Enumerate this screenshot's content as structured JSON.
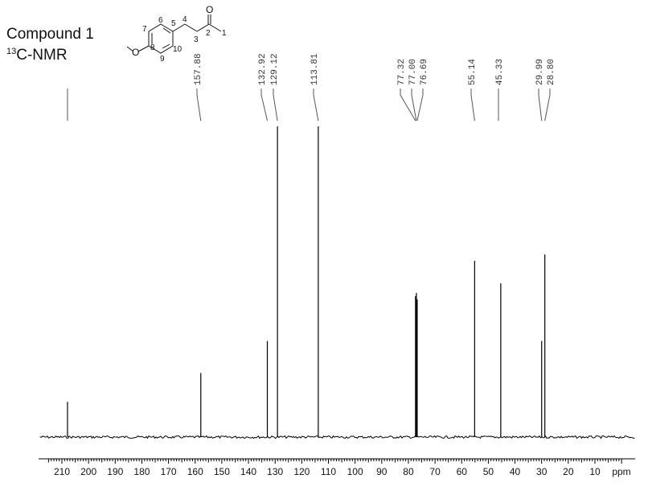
{
  "header": {
    "compound_label": "Compound 1",
    "nmr_mass": "13",
    "nmr_type": "C-NMR"
  },
  "structure": {
    "atom_numbers": [
      "1",
      "2",
      "3",
      "4",
      "5",
      "6",
      "7",
      "8",
      "9",
      "10"
    ],
    "carbonyl_atom": "O",
    "methoxy_atom": "O"
  },
  "chart_data": {
    "type": "line",
    "title": "",
    "xlabel": "ppm",
    "ylabel": "",
    "xlim": [
      215,
      0
    ],
    "x_reversed": true,
    "x_ticks": [
      210,
      200,
      190,
      180,
      170,
      160,
      150,
      140,
      130,
      120,
      110,
      100,
      90,
      80,
      70,
      60,
      50,
      40,
      30,
      20,
      10
    ],
    "grid": false,
    "peaks": [
      {
        "ppm": 207.9,
        "height": 0.11
      },
      {
        "ppm": 157.88,
        "height": 0.2
      },
      {
        "ppm": 132.92,
        "height": 0.3
      },
      {
        "ppm": 129.12,
        "height": 0.97
      },
      {
        "ppm": 113.81,
        "height": 0.97
      },
      {
        "ppm": 77.32,
        "height": 0.44
      },
      {
        "ppm": 77.0,
        "height": 0.45
      },
      {
        "ppm": 76.69,
        "height": 0.43
      },
      {
        "ppm": 55.14,
        "height": 0.55
      },
      {
        "ppm": 45.33,
        "height": 0.48
      },
      {
        "ppm": 29.99,
        "height": 0.3
      },
      {
        "ppm": 28.8,
        "height": 0.57
      }
    ],
    "peak_labels": [
      {
        "text": "157.88",
        "ppm": 157.88
      },
      {
        "text": "132.92",
        "ppm": 132.92
      },
      {
        "text": "129.12",
        "ppm": 129.12
      },
      {
        "text": "113.81",
        "ppm": 113.81
      },
      {
        "text": "77.32",
        "ppm": 77.32
      },
      {
        "text": "77.00",
        "ppm": 77.0
      },
      {
        "text": "76.69",
        "ppm": 76.69
      },
      {
        "text": "55.14",
        "ppm": 55.14
      },
      {
        "text": "45.33",
        "ppm": 45.33
      },
      {
        "text": "29.99",
        "ppm": 29.99
      },
      {
        "text": "28.80",
        "ppm": 28.8
      }
    ],
    "unlabeled_markers": [
      207.9
    ],
    "line_color": "#000000"
  }
}
